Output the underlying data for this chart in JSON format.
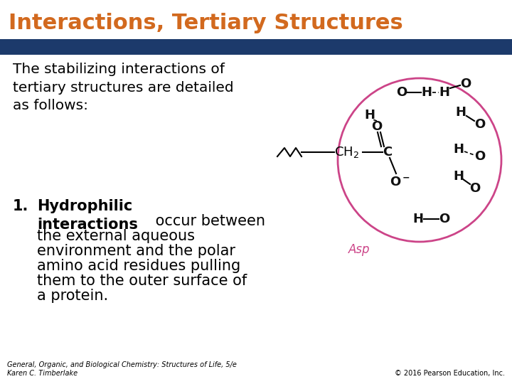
{
  "title": "Interactions, Tertiary Structures",
  "title_color": "#D2691E",
  "bg_color": "#ffffff",
  "bar_color": "#1C3A6B",
  "intro_text": "The stabilizing interactions of\ntertiary structures are detailed\nas follows:",
  "item1_bold": "Hydrophilic\ninteractions",
  "footer_left": "General, Organic, and Biological Chemistry: Structures of Life, 5/e\nKaren C. Timberlake",
  "footer_right": "© 2016 Pearson Education, Inc.",
  "title_fontsize": 22,
  "intro_fontsize": 14.5,
  "item_fontsize": 15,
  "footer_fontsize": 7,
  "orange": "#E8610A",
  "dark_navy": "#1C3A6B",
  "circle_edge_color": "#CC4488",
  "circle_face_color": "#ffffff",
  "chem_color": "#111111",
  "asp_color": "#CC4488"
}
